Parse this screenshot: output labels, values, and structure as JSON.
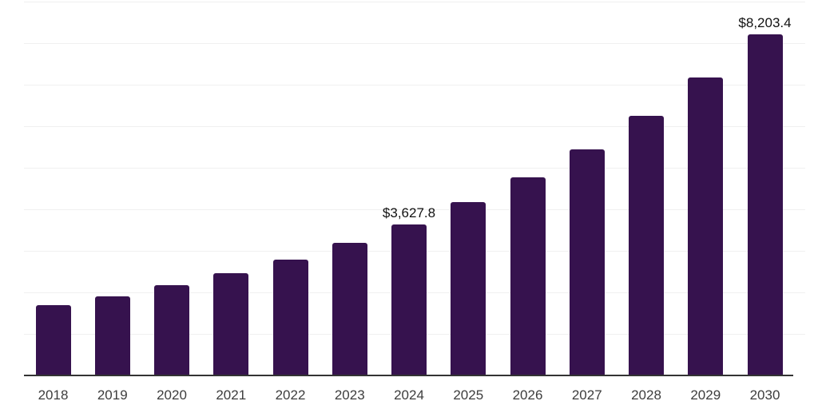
{
  "chart_data": {
    "type": "bar",
    "title": "",
    "xlabel": "",
    "ylabel": "",
    "categories": [
      "2018",
      "2019",
      "2020",
      "2021",
      "2022",
      "2023",
      "2024",
      "2025",
      "2026",
      "2027",
      "2028",
      "2029",
      "2030"
    ],
    "values": [
      1690,
      1905,
      2175,
      2465,
      2790,
      3195,
      3627.8,
      4175,
      4775,
      5450,
      6255,
      7180,
      8203.4
    ],
    "data_labels": [
      {
        "index": 6,
        "text": "$3,627.8"
      },
      {
        "index": 12,
        "text": "$8,203.4"
      }
    ],
    "ylim": [
      0,
      9000
    ],
    "gridline_interval": 1000,
    "grid": "horizontal-only",
    "legend_position": "none",
    "y_axis_labels_visible": false,
    "colors": {
      "bar": "#36124e",
      "gridline": "#f0f0f0",
      "axis_line": "#333333",
      "tick_label": "#3d3d3d",
      "data_label": "#111111",
      "background": "#ffffff"
    }
  }
}
